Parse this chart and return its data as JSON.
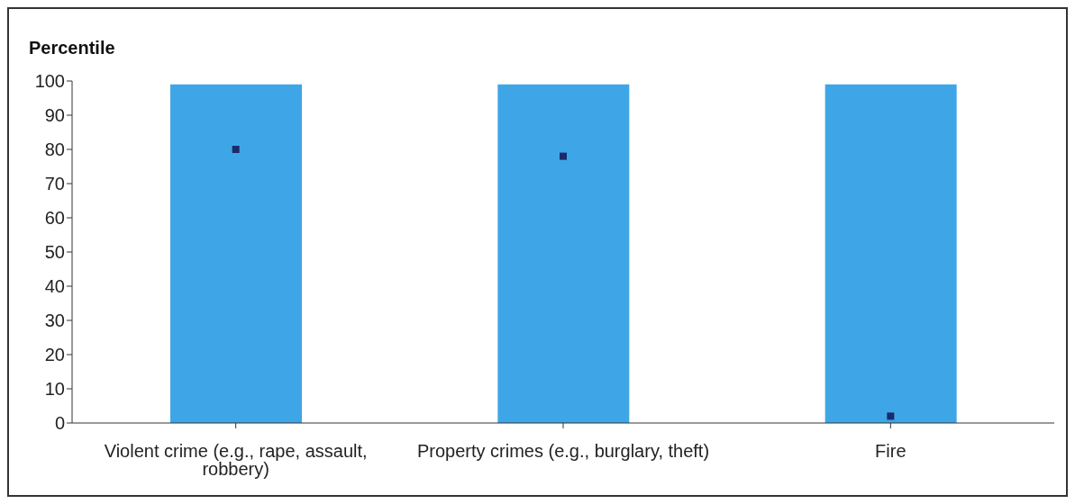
{
  "chart_data": {
    "type": "bar",
    "ylabel": "Percentile",
    "categories": [
      "Violent crime (e.g., rape, assault, robbery)",
      "Property crimes (e.g., burglary, theft)",
      "Fire"
    ],
    "series": [
      {
        "color": "#3ea6e6",
        "values": [
          99,
          99,
          99
        ]
      },
      {
        "type": "scatter",
        "color": "#1b2a6b",
        "marker": "square",
        "values": [
          80,
          78,
          2
        ]
      }
    ],
    "ylim": [
      0,
      100
    ],
    "yticks": [
      0,
      10,
      20,
      30,
      40,
      50,
      60,
      70,
      80,
      90,
      100
    ],
    "grid": false,
    "legend": false
  }
}
